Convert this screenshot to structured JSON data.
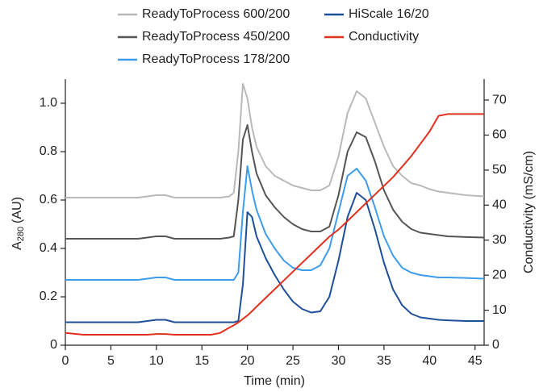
{
  "chart_data": {
    "type": "line",
    "xlabel": "Time (min)",
    "ylabel": {
      "main": "A",
      "sub": "280",
      "unit": "(AU)"
    },
    "y2label": "Conductivity (mS/cm)",
    "xlim": [
      0,
      46
    ],
    "xticks": [
      0,
      5,
      10,
      15,
      20,
      25,
      30,
      35,
      40,
      45
    ],
    "ylim": [
      0,
      1.1
    ],
    "yticks": [
      0,
      0.2,
      0.4,
      0.6,
      0.8,
      {
        "value": 1,
        "label": "1.0"
      }
    ],
    "y2lim": [
      0,
      76
    ],
    "y2ticks": [
      0,
      10,
      20,
      30,
      40,
      50,
      60,
      70
    ],
    "x": [
      0,
      2,
      4,
      6,
      8,
      9,
      10,
      11,
      12,
      14,
      16,
      17,
      18,
      18.5,
      19,
      19.5,
      20,
      20.5,
      21,
      22,
      23,
      24,
      25,
      26,
      27,
      28,
      29,
      30,
      31,
      32,
      33,
      34,
      35,
      36,
      37,
      38,
      39,
      40,
      41,
      42,
      44,
      46
    ],
    "series": [
      {
        "name": "ReadyToProcess 600/200",
        "color": "#b9b9b9",
        "values": [
          0.61,
          0.61,
          0.61,
          0.61,
          0.61,
          0.615,
          0.62,
          0.62,
          0.61,
          0.61,
          0.61,
          0.61,
          0.615,
          0.63,
          0.8,
          1.08,
          1.02,
          0.9,
          0.82,
          0.74,
          0.7,
          0.68,
          0.66,
          0.65,
          0.64,
          0.64,
          0.66,
          0.78,
          0.96,
          1.05,
          1.02,
          0.92,
          0.82,
          0.74,
          0.7,
          0.67,
          0.66,
          0.645,
          0.635,
          0.63,
          0.62,
          0.615
        ]
      },
      {
        "name": "ReadyToProcess 450/200",
        "color": "#555555",
        "values": [
          0.44,
          0.44,
          0.44,
          0.44,
          0.44,
          0.445,
          0.45,
          0.45,
          0.44,
          0.44,
          0.44,
          0.44,
          0.445,
          0.45,
          0.6,
          0.85,
          0.91,
          0.8,
          0.71,
          0.62,
          0.57,
          0.53,
          0.5,
          0.48,
          0.47,
          0.47,
          0.49,
          0.62,
          0.8,
          0.88,
          0.86,
          0.76,
          0.64,
          0.56,
          0.51,
          0.48,
          0.465,
          0.46,
          0.455,
          0.45,
          0.447,
          0.445
        ]
      },
      {
        "name": "ReadyToProcess 178/200",
        "color": "#3d9ceb",
        "values": [
          0.27,
          0.27,
          0.27,
          0.27,
          0.27,
          0.275,
          0.28,
          0.28,
          0.27,
          0.27,
          0.27,
          0.27,
          0.27,
          0.27,
          0.3,
          0.55,
          0.74,
          0.64,
          0.56,
          0.46,
          0.4,
          0.35,
          0.32,
          0.31,
          0.31,
          0.33,
          0.4,
          0.55,
          0.7,
          0.73,
          0.68,
          0.57,
          0.45,
          0.37,
          0.32,
          0.3,
          0.29,
          0.285,
          0.28,
          0.28,
          0.278,
          0.275
        ]
      },
      {
        "name": "HiScale 16/20",
        "color": "#1f4f98",
        "values": [
          0.095,
          0.095,
          0.095,
          0.095,
          0.095,
          0.1,
          0.105,
          0.105,
          0.095,
          0.095,
          0.095,
          0.095,
          0.095,
          0.095,
          0.1,
          0.25,
          0.55,
          0.53,
          0.45,
          0.36,
          0.29,
          0.23,
          0.18,
          0.15,
          0.135,
          0.14,
          0.2,
          0.35,
          0.53,
          0.63,
          0.6,
          0.48,
          0.34,
          0.23,
          0.165,
          0.13,
          0.115,
          0.11,
          0.105,
          0.103,
          0.1,
          0.1
        ]
      },
      {
        "name": "Conductivity",
        "color": "#e0301e",
        "axis": "y2",
        "values": [
          3.5,
          3,
          3,
          3,
          3,
          3,
          3.2,
          3.2,
          3,
          3,
          3,
          3.5,
          5,
          5.7,
          6.5,
          7.5,
          8.5,
          9.7,
          11,
          13.5,
          16,
          18.5,
          21,
          23.5,
          26,
          28.5,
          31,
          33,
          35.5,
          38,
          40.5,
          43,
          45.5,
          48,
          51,
          54,
          57.5,
          61,
          65.5,
          66,
          66,
          66
        ]
      }
    ]
  }
}
